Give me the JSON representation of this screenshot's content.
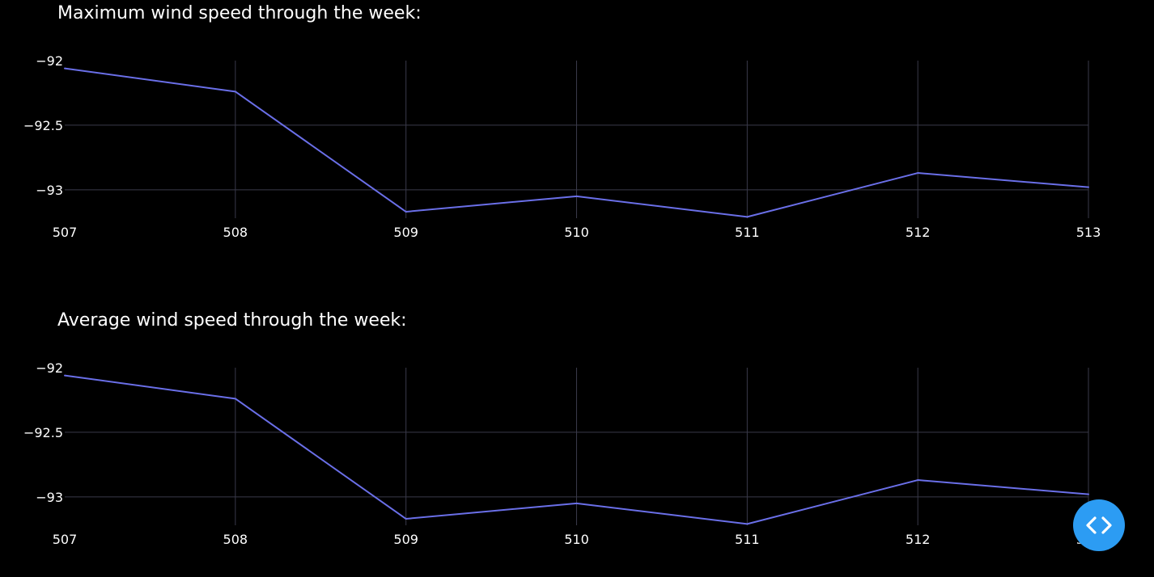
{
  "colors": {
    "background": "#000000",
    "line": "#6a6fe8",
    "grid": "#3a3a4a",
    "text": "#ffffff",
    "fab": "#2c9cf3"
  },
  "fab": {
    "icon": "code-icon"
  },
  "chart_data": [
    {
      "type": "line",
      "title": "Maximum wind speed through the week:",
      "xlabel": "",
      "ylabel": "",
      "x": [
        507,
        508,
        509,
        510,
        511,
        512,
        513
      ],
      "x_tick_labels": [
        "507",
        "508",
        "509",
        "510",
        "511",
        "512",
        "513"
      ],
      "y_tick_values": [
        -92,
        -92.5,
        -93
      ],
      "y_tick_labels": [
        "−92",
        "−92.5",
        "−93"
      ],
      "series": [
        {
          "values": [
            -92.06,
            -92.24,
            -93.17,
            -93.05,
            -93.21,
            -92.87,
            -92.98
          ]
        }
      ],
      "ylim": [
        -93.22,
        -92.0
      ],
      "grid": true,
      "legend": "none"
    },
    {
      "type": "line",
      "title": "Average wind speed through the week:",
      "xlabel": "",
      "ylabel": "",
      "x": [
        507,
        508,
        509,
        510,
        511,
        512,
        513
      ],
      "x_tick_labels": [
        "507",
        "508",
        "509",
        "510",
        "511",
        "512",
        "513"
      ],
      "y_tick_values": [
        -92,
        -92.5,
        -93
      ],
      "y_tick_labels": [
        "−92",
        "−92.5",
        "−93"
      ],
      "series": [
        {
          "values": [
            -92.06,
            -92.24,
            -93.17,
            -93.05,
            -93.21,
            -92.87,
            -92.98
          ]
        }
      ],
      "ylim": [
        -93.22,
        -92.0
      ],
      "grid": true,
      "legend": "none"
    }
  ]
}
